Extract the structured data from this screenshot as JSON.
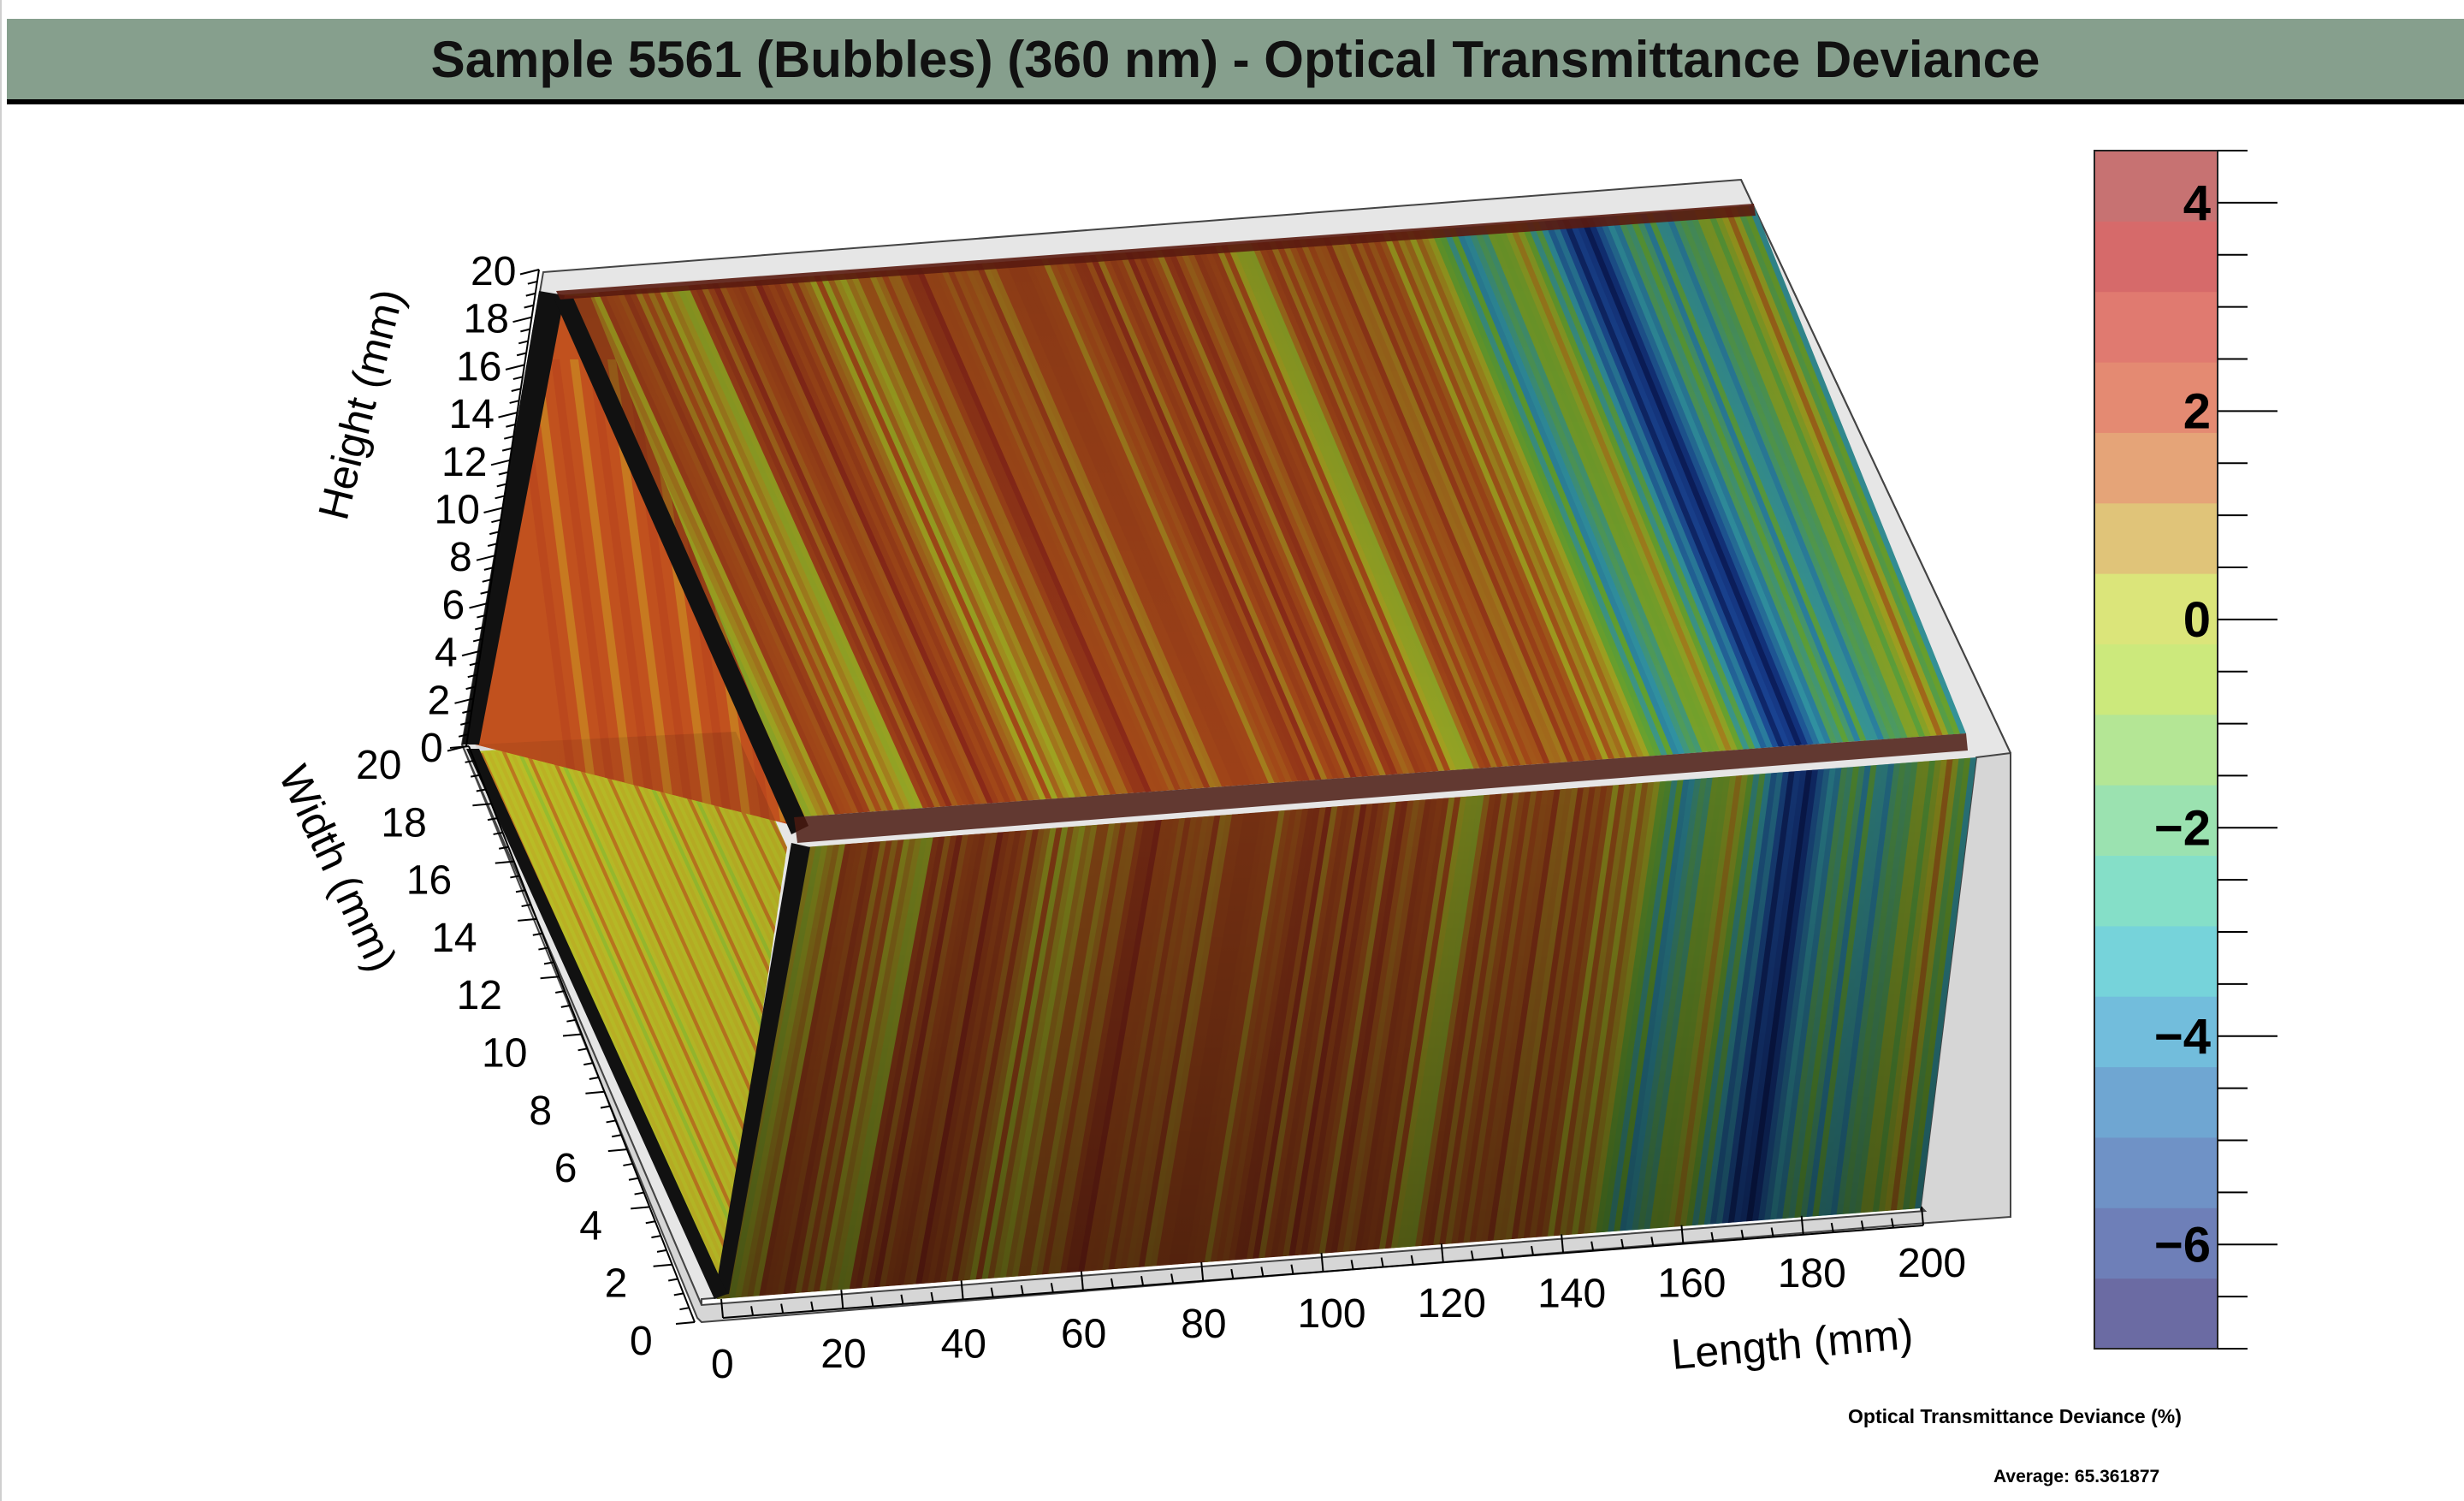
{
  "title": "Sample 5561 (Bubbles) (360 nm) - Optical Transmittance Deviance",
  "chart_data": {
    "type": "3d-box-surface",
    "axes": {
      "x": {
        "label": "Length (mm)",
        "ticks": [
          0,
          20,
          40,
          60,
          80,
          100,
          120,
          140,
          160,
          180,
          200
        ],
        "range": [
          0,
          200
        ]
      },
      "y": {
        "label": "Width (mm)",
        "ticks": [
          0,
          2,
          4,
          6,
          8,
          10,
          12,
          14,
          16,
          18,
          20
        ],
        "range": [
          0,
          20
        ]
      },
      "z": {
        "label": "Height (mm)",
        "ticks": [
          0,
          2,
          4,
          6,
          8,
          10,
          12,
          14,
          16,
          18,
          20
        ],
        "range": [
          0,
          20
        ]
      }
    },
    "colorbar": {
      "range": [
        -7,
        4.5
      ],
      "ticks": [
        4,
        2,
        0,
        -2,
        -4,
        -6
      ],
      "tick_labels": [
        "4",
        "2",
        "0",
        "−2",
        "−4",
        "−6"
      ],
      "bands": [
        "#6b6ba3",
        "#6e7fb8",
        "#6f92c6",
        "#6fa6d2",
        "#72bddc",
        "#76d3da",
        "#85dfc8",
        "#9be2b0",
        "#b4e695",
        "#cce97c",
        "#dbe57a",
        "#e0c479",
        "#e5a478",
        "#e48a72",
        "#e07a70",
        "#d66a6a",
        "#c77272"
      ],
      "title": "Optical Transmittance Deviance (%)"
    },
    "average_label": "Average: 65.361877",
    "profile_along_length": {
      "x_mm": [
        0,
        5,
        10,
        15,
        20,
        25,
        30,
        35,
        40,
        45,
        50,
        55,
        60,
        65,
        70,
        75,
        80,
        85,
        90,
        95,
        100,
        105,
        110,
        115,
        120,
        125,
        130,
        135,
        140,
        145,
        150,
        155,
        160,
        165,
        170,
        175,
        180,
        185,
        190,
        195,
        200
      ],
      "deviance_pct": [
        0.5,
        1.5,
        3.0,
        2.5,
        0.8,
        3.2,
        2.8,
        3.5,
        2.6,
        1.0,
        1.5,
        3.0,
        3.4,
        2.2,
        3.0,
        1.8,
        2.5,
        3.2,
        2.9,
        3.1,
        2.4,
        3.3,
        2.0,
        1.2,
        2.8,
        3.1,
        2.7,
        3.4,
        1.5,
        0.5,
        -2.5,
        -1.0,
        0.5,
        -4.0,
        -6.5,
        -4.5,
        -2.0,
        -3.5,
        -1.5,
        1.0,
        -2.5
      ]
    }
  }
}
